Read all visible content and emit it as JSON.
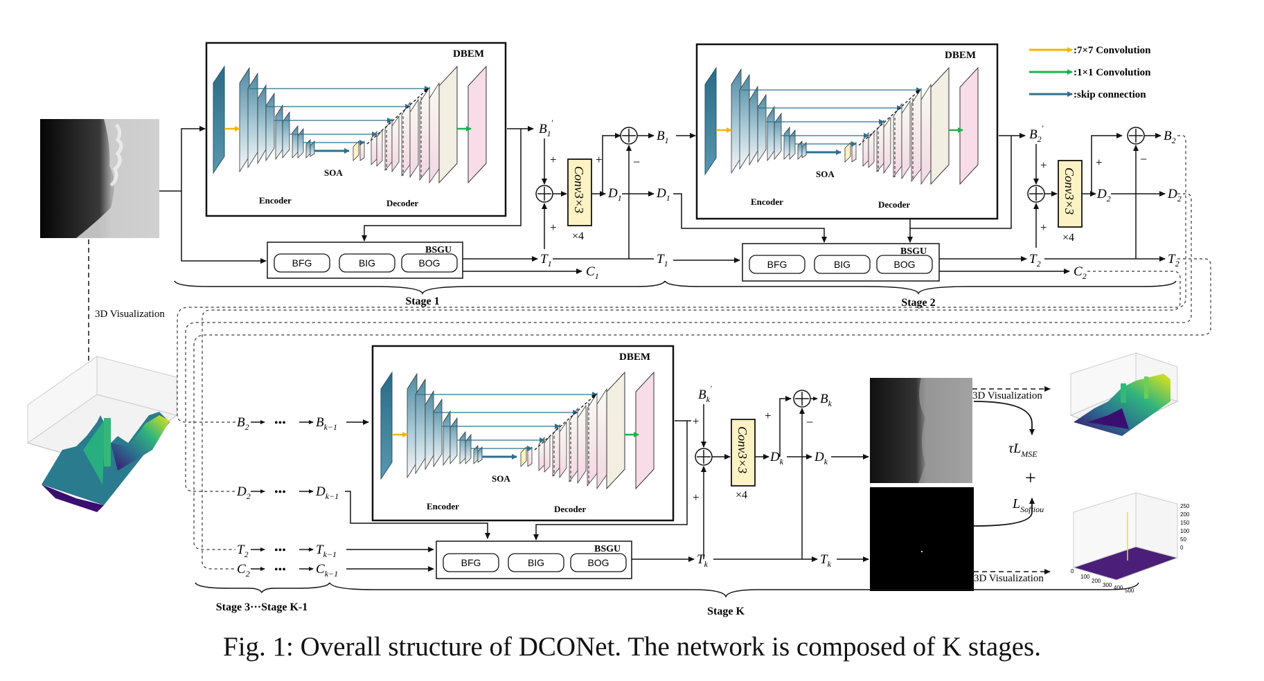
{
  "caption": "Fig. 1: Overall structure of DCONet. The network is composed of K stages.",
  "legend": [
    {
      "label": ":7×7 Convolution",
      "color": "#f4b400"
    },
    {
      "label": ":1×1 Convolution",
      "color": "#18b34b"
    },
    {
      "label": ":skip connection",
      "color": "#2e6f8e"
    }
  ],
  "modules": {
    "dbem": "DBEM",
    "encoder": "Encoder",
    "decoder": "Decoder",
    "soa": "SOA",
    "bsgu": "BSGU",
    "bfg": "BFG",
    "big": "BIG",
    "bog": "BOG",
    "conv": "Conv3×3",
    "times4": "×4"
  },
  "stages": {
    "stage1": "Stage 1",
    "stage2": "Stage 2",
    "stage3k": "Stage 3···Stage K-1",
    "stagek": "Stage K"
  },
  "vis_label": "3D Visualization",
  "signs": {
    "plus": "+",
    "minus": "−",
    "dots": "•••"
  },
  "loss": {
    "tau": "τL",
    "mse": "MSE",
    "plus": "+",
    "l": "L",
    "soft": "Softiou"
  },
  "symbols": {
    "B": "B",
    "D": "D",
    "T": "T",
    "C": "C",
    "sub1": "1",
    "sub2": "2",
    "subk": "k",
    "subk1": "k−1",
    "prime": "'"
  },
  "plot_ticks": {
    "z": [
      "250",
      "200",
      "150",
      "100",
      "50",
      "0"
    ],
    "xy": [
      "0",
      "100",
      "200",
      "300",
      "400",
      "500"
    ]
  },
  "colors": {
    "teal": "#2e6f8e",
    "light_teal": "#9cc3d3",
    "pink": "#f6d3e2",
    "cream": "#f1efe0",
    "yellow_box": "#fdf2c4"
  }
}
